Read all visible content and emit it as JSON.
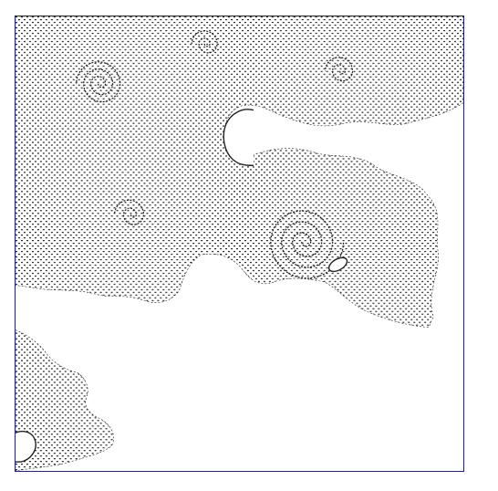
{
  "viewer": {
    "frame_color": "#24246e",
    "background_color": "#ffffff",
    "ink_color": "#222222",
    "content": "fractal-line-art"
  }
}
